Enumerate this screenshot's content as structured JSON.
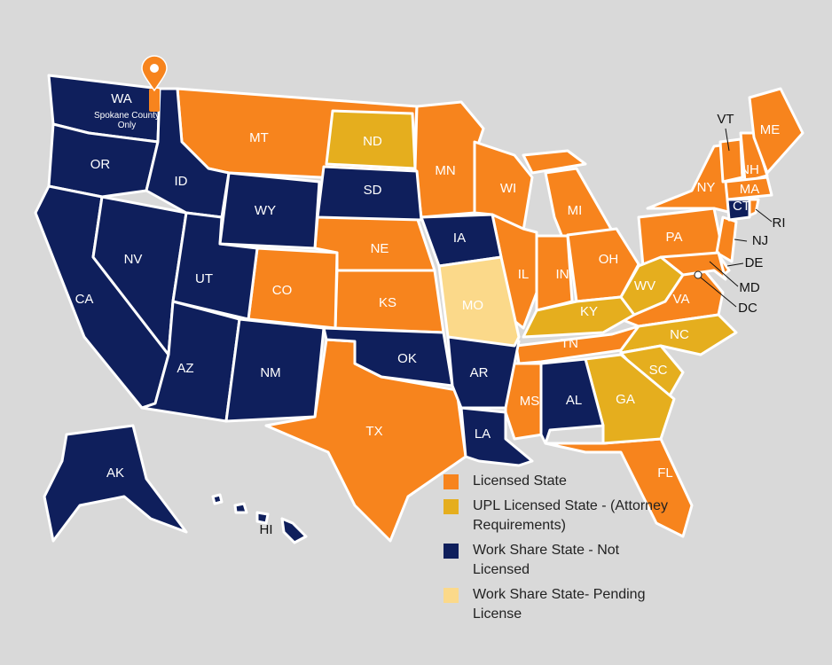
{
  "map": {
    "annotation": "Spokane County Only",
    "legend": [
      {
        "label": "Licensed State",
        "color": "#f7841d",
        "states": [
          "MT",
          "MN",
          "WI",
          "MI",
          "IL",
          "IN",
          "OH",
          "NE",
          "KS",
          "CO",
          "TX",
          "MS",
          "TN",
          "FL",
          "PA",
          "NY",
          "NJ",
          "VA",
          "VT",
          "NH",
          "ME",
          "MA",
          "RI",
          "DE",
          "MD",
          "DC"
        ]
      },
      {
        "label": "UPL Licensed State - (Attorney Requirements)",
        "color": "#e5ae1e",
        "states": [
          "ND",
          "KY",
          "WV",
          "NC",
          "SC",
          "GA"
        ]
      },
      {
        "label": "Work Share State - Not Licensed",
        "color": "#0f1f5c",
        "states": [
          "WA",
          "OR",
          "CA",
          "NV",
          "ID",
          "UT",
          "AZ",
          "WY",
          "NM",
          "SD",
          "IA",
          "OK",
          "AR",
          "LA",
          "AL",
          "AK",
          "HI",
          "CT"
        ]
      },
      {
        "label": "Work Share State- Pending License",
        "color": "#fbd98a",
        "states": [
          "MO"
        ]
      }
    ]
  }
}
